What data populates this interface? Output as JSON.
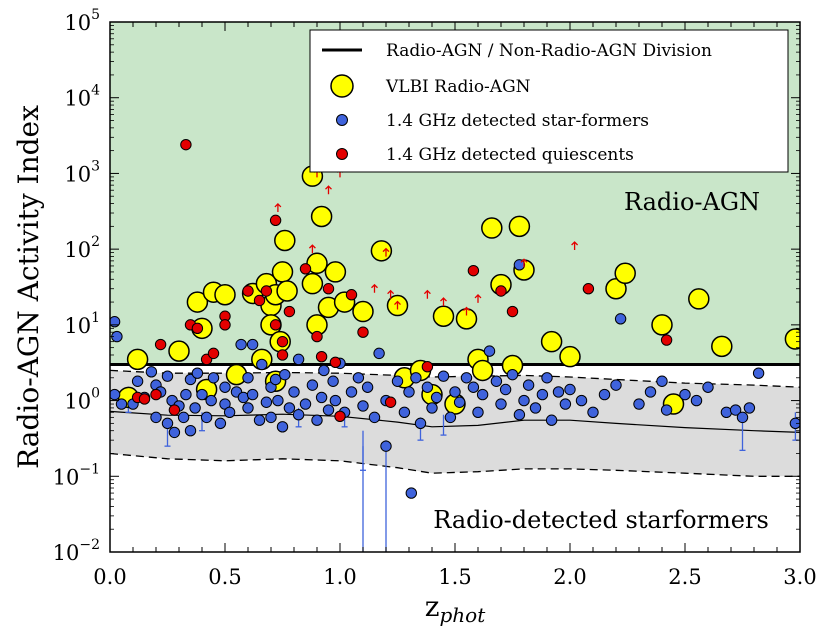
{
  "chart_data": {
    "type": "scatter",
    "xlabel": "z",
    "xlabel_sub": "phot",
    "ylabel": "Radio-AGN Activity Index",
    "xlim": [
      0.0,
      3.0
    ],
    "ylim_log10": [
      -2,
      5
    ],
    "xticks": [
      "0.0",
      "0.5",
      "1.0",
      "1.5",
      "2.0",
      "2.5",
      "3.0"
    ],
    "yticks": [
      {
        "base": "10",
        "exp": "−2",
        "log": -2
      },
      {
        "base": "10",
        "exp": "−1",
        "log": -1
      },
      {
        "base": "10",
        "exp": "0",
        "log": 0
      },
      {
        "base": "10",
        "exp": "1",
        "log": 1
      },
      {
        "base": "10",
        "exp": "2",
        "log": 2
      },
      {
        "base": "10",
        "exp": "3",
        "log": 3
      },
      {
        "base": "10",
        "exp": "4",
        "log": 4
      },
      {
        "base": "10",
        "exp": "5",
        "log": 5
      }
    ],
    "regions": {
      "agn_label": "Radio-AGN",
      "sf_label": "Radio-detected starformers",
      "division_value": 3.0
    },
    "colors": {
      "agn_fill": "#c9e6c9",
      "band_fill": "#dcdcdc",
      "starformer": "#3f63dc",
      "quiescent": "#e30000",
      "vlbi": "#ffff00"
    },
    "legend": [
      {
        "kind": "line",
        "label": "Radio-AGN / Non-Radio-AGN Division"
      },
      {
        "kind": "vlbi",
        "label": "VLBI Radio-AGN"
      },
      {
        "kind": "sf",
        "label": "1.4 GHz detected star-formers"
      },
      {
        "kind": "q",
        "label": "1.4 GHz detected quiescents"
      }
    ],
    "median_curve": [
      [
        0,
        0.72
      ],
      [
        0.25,
        0.64
      ],
      [
        0.5,
        0.63
      ],
      [
        0.75,
        0.66
      ],
      [
        1.0,
        0.62
      ],
      [
        1.25,
        0.52
      ],
      [
        1.4,
        0.45
      ],
      [
        1.6,
        0.47
      ],
      [
        1.8,
        0.55
      ],
      [
        2.0,
        0.55
      ],
      [
        2.2,
        0.5
      ],
      [
        2.5,
        0.44
      ],
      [
        2.8,
        0.4
      ],
      [
        3.0,
        0.38
      ]
    ],
    "upper_band": [
      [
        0,
        2.5
      ],
      [
        0.25,
        2.3
      ],
      [
        0.5,
        2.3
      ],
      [
        0.75,
        2.35
      ],
      [
        1.0,
        2.3
      ],
      [
        1.25,
        2.15
      ],
      [
        1.4,
        2.05
      ],
      [
        1.6,
        2.1
      ],
      [
        1.8,
        2.15
      ],
      [
        2.0,
        2.05
      ],
      [
        2.2,
        1.9
      ],
      [
        2.5,
        1.7
      ],
      [
        2.8,
        1.6
      ],
      [
        3.0,
        1.5
      ]
    ],
    "lower_band": [
      [
        0,
        0.2
      ],
      [
        0.25,
        0.17
      ],
      [
        0.5,
        0.16
      ],
      [
        0.75,
        0.17
      ],
      [
        1.0,
        0.16
      ],
      [
        1.25,
        0.13
      ],
      [
        1.4,
        0.11
      ],
      [
        1.6,
        0.115
      ],
      [
        1.8,
        0.125
      ],
      [
        2.0,
        0.125
      ],
      [
        2.2,
        0.12
      ],
      [
        2.5,
        0.11
      ],
      [
        2.8,
        0.1
      ],
      [
        3.0,
        0.1
      ]
    ],
    "vlbi": [
      [
        0.08,
        1.1
      ],
      [
        0.12,
        3.5
      ],
      [
        0.3,
        4.5
      ],
      [
        0.38,
        20
      ],
      [
        0.4,
        9
      ],
      [
        0.42,
        1.4
      ],
      [
        0.45,
        27
      ],
      [
        0.5,
        25
      ],
      [
        0.55,
        2.2
      ],
      [
        0.62,
        26
      ],
      [
        0.66,
        3.5
      ],
      [
        0.68,
        35
      ],
      [
        0.7,
        18
      ],
      [
        0.7,
        10
      ],
      [
        0.72,
        1.8
      ],
      [
        0.72,
        25
      ],
      [
        0.74,
        6
      ],
      [
        0.75,
        50
      ],
      [
        0.76,
        130
      ],
      [
        0.77,
        28
      ],
      [
        0.88,
        920
      ],
      [
        0.88,
        35
      ],
      [
        0.9,
        10
      ],
      [
        0.9,
        65
      ],
      [
        0.92,
        270
      ],
      [
        0.95,
        17
      ],
      [
        0.98,
        50
      ],
      [
        1.02,
        20
      ],
      [
        1.1,
        15
      ],
      [
        1.18,
        95
      ],
      [
        1.25,
        18
      ],
      [
        1.28,
        2.0
      ],
      [
        1.35,
        2.5
      ],
      [
        1.4,
        1.2
      ],
      [
        1.45,
        13
      ],
      [
        1.5,
        0.9
      ],
      [
        1.55,
        12
      ],
      [
        1.6,
        3.5
      ],
      [
        1.62,
        2.5
      ],
      [
        1.66,
        190
      ],
      [
        1.7,
        34
      ],
      [
        1.75,
        2.9
      ],
      [
        1.78,
        200
      ],
      [
        1.8,
        53
      ],
      [
        1.92,
        6
      ],
      [
        2.0,
        3.8
      ],
      [
        2.2,
        30
      ],
      [
        2.24,
        48
      ],
      [
        2.4,
        10
      ],
      [
        2.45,
        0.9
      ],
      [
        2.56,
        22
      ],
      [
        2.66,
        5.2
      ],
      [
        2.98,
        6.5
      ]
    ],
    "quiescent": [
      [
        0.12,
        1.1
      ],
      [
        0.15,
        1.05
      ],
      [
        0.2,
        1.2
      ],
      [
        0.22,
        5.5
      ],
      [
        0.28,
        0.75
      ],
      [
        0.33,
        2400
      ],
      [
        0.35,
        10
      ],
      [
        0.38,
        9
      ],
      [
        0.42,
        3.5
      ],
      [
        0.45,
        4.2
      ],
      [
        0.5,
        13
      ],
      [
        0.5,
        10
      ],
      [
        0.6,
        28
      ],
      [
        0.65,
        21
      ],
      [
        0.68,
        28
      ],
      [
        0.72,
        240
      ],
      [
        0.72,
        10
      ],
      [
        0.75,
        6
      ],
      [
        0.75,
        4
      ],
      [
        0.78,
        15
      ],
      [
        0.85,
        55
      ],
      [
        0.9,
        7
      ],
      [
        0.92,
        3.8
      ],
      [
        0.95,
        30
      ],
      [
        0.98,
        3.2
      ],
      [
        1.0,
        0.62
      ],
      [
        1.05,
        25
      ],
      [
        1.1,
        8
      ],
      [
        1.22,
        0.95
      ],
      [
        1.38,
        2.8
      ],
      [
        1.58,
        52
      ],
      [
        1.7,
        28
      ],
      [
        1.75,
        15
      ],
      [
        2.08,
        30
      ],
      [
        2.42,
        6.3
      ]
    ],
    "upper_limits": [
      [
        0.73,
        350
      ],
      [
        0.88,
        100
      ],
      [
        0.9,
        1000
      ],
      [
        0.95,
        600
      ],
      [
        1.0,
        1000
      ],
      [
        1.15,
        30
      ],
      [
        1.2,
        90
      ],
      [
        1.22,
        25
      ],
      [
        1.25,
        18
      ],
      [
        1.38,
        25
      ],
      [
        1.45,
        20
      ],
      [
        1.55,
        15
      ],
      [
        1.6,
        22
      ],
      [
        1.8,
        65
      ],
      [
        2.02,
        110
      ]
    ],
    "starformers": [
      [
        0.02,
        11
      ],
      [
        0.03,
        7
      ],
      [
        0.02,
        1.2
      ],
      [
        0.05,
        0.9
      ],
      [
        0.1,
        0.9
      ],
      [
        0.12,
        1.8
      ],
      [
        0.15,
        1.1
      ],
      [
        0.18,
        2.4
      ],
      [
        0.2,
        1.6
      ],
      [
        0.2,
        0.6
      ],
      [
        0.22,
        1.3
      ],
      [
        0.25,
        0.5
      ],
      [
        0.25,
        2.1
      ],
      [
        0.27,
        1.0
      ],
      [
        0.28,
        0.38
      ],
      [
        0.3,
        0.85
      ],
      [
        0.32,
        0.6
      ],
      [
        0.33,
        1.2
      ],
      [
        0.35,
        1.9
      ],
      [
        0.35,
        0.4
      ],
      [
        0.37,
        0.8
      ],
      [
        0.38,
        2.3
      ],
      [
        0.4,
        1.2
      ],
      [
        0.42,
        0.6
      ],
      [
        0.44,
        1.0
      ],
      [
        0.45,
        2.0
      ],
      [
        0.48,
        0.5
      ],
      [
        0.5,
        1.5
      ],
      [
        0.5,
        0.9
      ],
      [
        0.52,
        0.7
      ],
      [
        0.55,
        1.3
      ],
      [
        0.57,
        5.5
      ],
      [
        0.58,
        1.1
      ],
      [
        0.6,
        0.8
      ],
      [
        0.6,
        2.0
      ],
      [
        0.62,
        1.2
      ],
      [
        0.62,
        5.5
      ],
      [
        0.65,
        0.55
      ],
      [
        0.66,
        3.0
      ],
      [
        0.68,
        0.95
      ],
      [
        0.7,
        1.5
      ],
      [
        0.7,
        0.6
      ],
      [
        0.72,
        1.9
      ],
      [
        0.73,
        1.0
      ],
      [
        0.75,
        0.45
      ],
      [
        0.76,
        2.2
      ],
      [
        0.78,
        0.8
      ],
      [
        0.8,
        1.3
      ],
      [
        0.82,
        0.65
      ],
      [
        0.82,
        3.5
      ],
      [
        0.85,
        0.9
      ],
      [
        0.88,
        1.6
      ],
      [
        0.9,
        0.55
      ],
      [
        0.92,
        1.1
      ],
      [
        0.93,
        2.5
      ],
      [
        0.95,
        0.75
      ],
      [
        0.97,
        1.8
      ],
      [
        0.98,
        1.0
      ],
      [
        1.0,
        3.1
      ],
      [
        1.02,
        0.7
      ],
      [
        1.05,
        1.3
      ],
      [
        1.08,
        2.0
      ],
      [
        1.1,
        0.85
      ],
      [
        1.12,
        1.5
      ],
      [
        1.15,
        0.6
      ],
      [
        1.17,
        4.2
      ],
      [
        1.2,
        1.0
      ],
      [
        1.2,
        0.25
      ],
      [
        1.25,
        1.8
      ],
      [
        1.28,
        0.7
      ],
      [
        1.3,
        1.3
      ],
      [
        1.31,
        0.06
      ],
      [
        1.33,
        2.0
      ],
      [
        1.35,
        0.5
      ],
      [
        1.38,
        1.5
      ],
      [
        1.4,
        0.8
      ],
      [
        1.42,
        1.1
      ],
      [
        1.45,
        2.1
      ],
      [
        1.48,
        0.6
      ],
      [
        1.5,
        1.3
      ],
      [
        1.52,
        0.95
      ],
      [
        1.55,
        2.0
      ],
      [
        1.58,
        1.5
      ],
      [
        1.6,
        0.7
      ],
      [
        1.62,
        1.2
      ],
      [
        1.65,
        4.5
      ],
      [
        1.68,
        1.8
      ],
      [
        1.7,
        0.9
      ],
      [
        1.72,
        1.4
      ],
      [
        1.75,
        2.2
      ],
      [
        1.78,
        0.65
      ],
      [
        1.78,
        62
      ],
      [
        1.8,
        1.0
      ],
      [
        1.82,
        1.6
      ],
      [
        1.85,
        0.8
      ],
      [
        1.88,
        1.2
      ],
      [
        1.9,
        2.0
      ],
      [
        1.92,
        0.55
      ],
      [
        1.95,
        1.3
      ],
      [
        1.98,
        0.9
      ],
      [
        2.0,
        1.4
      ],
      [
        2.05,
        1.0
      ],
      [
        2.1,
        0.7
      ],
      [
        2.15,
        1.2
      ],
      [
        2.2,
        1.6
      ],
      [
        2.22,
        12
      ],
      [
        2.3,
        0.9
      ],
      [
        2.35,
        1.3
      ],
      [
        2.4,
        1.8
      ],
      [
        2.42,
        0.75
      ],
      [
        2.5,
        1.2
      ],
      [
        2.55,
        1.0
      ],
      [
        2.6,
        1.5
      ],
      [
        2.68,
        0.7
      ],
      [
        2.72,
        0.75
      ],
      [
        2.75,
        0.6
      ],
      [
        2.78,
        0.8
      ],
      [
        2.82,
        2.3
      ],
      [
        2.98,
        0.5
      ]
    ],
    "error_bars": [
      [
        0.08,
        0.7,
        1.1
      ],
      [
        0.25,
        0.25,
        0.45
      ],
      [
        0.4,
        0.4,
        0.7
      ],
      [
        1.02,
        0.45,
        0.8
      ],
      [
        1.1,
        0.12,
        0.4
      ],
      [
        1.2,
        0.008,
        0.3
      ],
      [
        1.1,
        0.008,
        0.25
      ],
      [
        1.35,
        0.3,
        0.6
      ],
      [
        1.45,
        0.35,
        0.65
      ],
      [
        2.75,
        0.22,
        0.55
      ],
      [
        2.98,
        0.3,
        0.7
      ],
      [
        0.82,
        0.45,
        0.8
      ]
    ]
  }
}
